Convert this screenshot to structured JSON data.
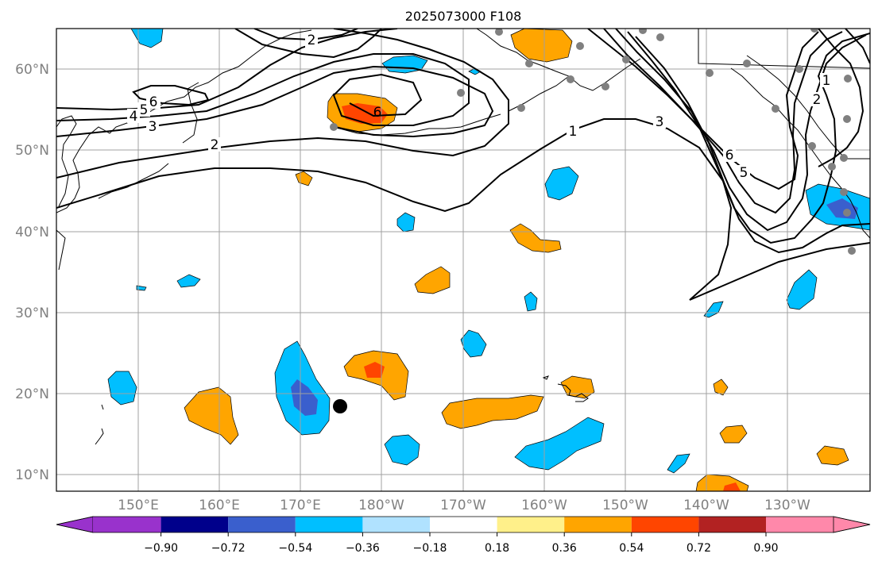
{
  "title": "2025073000 F108",
  "map": {
    "lon_labels": [
      "150°E",
      "160°E",
      "170°E",
      "180°W",
      "170°W",
      "160°W",
      "150°W",
      "140°W",
      "130°W"
    ],
    "lat_labels": [
      "60°N",
      "50°N",
      "40°N",
      "30°N",
      "20°N",
      "10°N"
    ],
    "grid": true,
    "coastline_color": "#000000",
    "gridline_color": "#a0a0a0"
  },
  "contours": {
    "color": "#000000",
    "labels": [
      {
        "name": "contour-label-2-north",
        "text": "2"
      },
      {
        "name": "contour-label-6-west",
        "text": "6"
      },
      {
        "name": "contour-label-5-west",
        "text": "5"
      },
      {
        "name": "contour-label-4-west",
        "text": "4"
      },
      {
        "name": "contour-label-3-west",
        "text": "3"
      },
      {
        "name": "contour-label-2-west",
        "text": "2"
      },
      {
        "name": "contour-label-6-dateline",
        "text": "6"
      },
      {
        "name": "contour-label-1-central",
        "text": "1"
      },
      {
        "name": "contour-label-3-east",
        "text": "3"
      },
      {
        "name": "contour-label-6-east",
        "text": "6"
      },
      {
        "name": "contour-label-5-east",
        "text": "5"
      },
      {
        "name": "contour-label-1-northeast",
        "text": "1"
      },
      {
        "name": "contour-label-2-northeast",
        "text": "2"
      }
    ]
  },
  "colorbar": {
    "tick_labels": [
      "−0.90",
      "−0.72",
      "−0.54",
      "−0.36",
      "−0.18",
      "0.18",
      "0.36",
      "0.54",
      "0.72",
      "0.90"
    ],
    "colors": [
      "#9932cc",
      "#00008b",
      "#3a5fcd",
      "#00bfff",
      "#b0e2ff",
      "#ffffff",
      "#fff08a",
      "#ffa500",
      "#ff4500",
      "#b22222",
      "#ff88aa"
    ]
  },
  "markers": {
    "station_color": "#808080",
    "storm_color": "#000000"
  }
}
